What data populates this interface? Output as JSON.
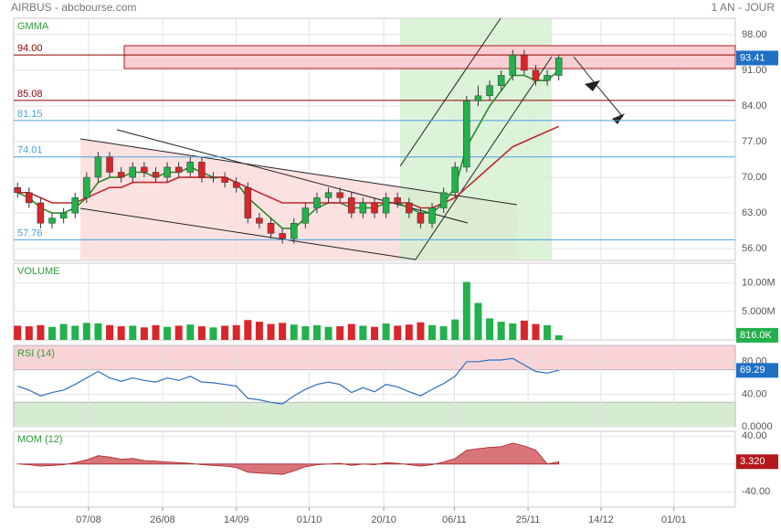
{
  "header": {
    "title": "AIRBUS - abcbourse.com",
    "period": "1 AN - JOUR"
  },
  "xaxis": {
    "x": [
      1,
      4,
      7,
      10,
      13,
      16,
      19,
      22,
      25,
      28,
      31,
      34,
      37,
      40,
      43,
      46,
      49,
      52,
      55,
      58,
      61,
      64,
      67,
      70,
      73,
      76,
      79,
      82,
      85,
      88,
      91,
      94,
      97,
      100,
      103,
      106,
      109,
      112,
      115,
      118,
      121,
      124,
      127,
      130,
      133,
      136,
      139,
      142
    ],
    "xlim": [
      0,
      188
    ],
    "xticks": [
      {
        "value": 19.5,
        "label": "07/08"
      },
      {
        "value": 38.8,
        "label": "26/08"
      },
      {
        "value": 58,
        "label": "14/09"
      },
      {
        "value": 77,
        "label": "01/10"
      },
      {
        "value": 96.4,
        "label": "20/10"
      },
      {
        "value": 114.8,
        "label": "06/11"
      },
      {
        "value": 134,
        "label": "25/11"
      },
      {
        "value": 153,
        "label": "14/12"
      },
      {
        "value": 172,
        "label": "01/01"
      }
    ]
  },
  "chart_data": [
    {
      "type": "candlestick",
      "title": "GMMA",
      "up_color": "#22b14c",
      "down_color": "#d9262b",
      "open": [
        68,
        67,
        65,
        61,
        62,
        63,
        66,
        70,
        74,
        71,
        70,
        72,
        71,
        70,
        72,
        71,
        73,
        70,
        70,
        69,
        68,
        62,
        61,
        59,
        58,
        61,
        64,
        66,
        67,
        66,
        63,
        65,
        63,
        66,
        65,
        63,
        61,
        64,
        67,
        72,
        85,
        86,
        88,
        90,
        94,
        91,
        89,
        90
      ],
      "high": [
        69,
        68,
        66,
        63,
        64,
        67,
        71,
        75,
        75,
        72,
        73,
        73,
        72,
        73,
        73,
        74,
        74,
        71,
        71,
        70,
        69,
        63,
        62,
        60,
        62,
        65,
        67,
        68,
        68,
        67,
        66,
        66,
        67,
        67,
        66,
        64,
        65,
        68,
        73,
        86,
        88,
        89,
        91,
        95,
        95,
        92,
        91,
        94
      ],
      "low": [
        66,
        64,
        60,
        60,
        61,
        62,
        65,
        69,
        70,
        69,
        69,
        70,
        69,
        69,
        70,
        70,
        69,
        69,
        68,
        67,
        61,
        60,
        58,
        57,
        57,
        60,
        63,
        65,
        65,
        62,
        62,
        62,
        62,
        64,
        62,
        60,
        60,
        63,
        66,
        71,
        84,
        85,
        87,
        89,
        90,
        88,
        88,
        89
      ],
      "close": [
        67,
        65,
        61,
        62,
        63,
        66,
        70,
        74,
        71,
        70,
        72,
        71,
        70,
        72,
        71,
        73,
        70,
        70,
        69,
        68,
        62,
        61,
        59,
        58,
        61,
        64,
        66,
        67,
        66,
        63,
        65,
        63,
        66,
        65,
        63,
        61,
        64,
        67,
        72,
        85,
        86,
        88,
        90,
        94,
        91,
        89,
        90,
        93.41
      ],
      "last_label": "93.41",
      "last_color": "#1f6fc5",
      "overlays": [
        {
          "color": "#2a8a2a",
          "values": [
            67,
            66,
            64,
            63,
            63,
            64,
            66,
            69,
            70,
            70,
            71,
            71,
            70,
            71,
            71,
            72,
            71,
            70,
            70,
            69,
            66,
            64,
            62,
            60,
            60,
            62,
            64,
            65,
            65,
            64,
            64,
            64,
            65,
            65,
            64,
            63,
            63,
            65,
            68,
            76,
            80,
            84,
            87,
            90,
            90,
            89,
            89,
            91
          ]
        },
        {
          "color": "#c0282d",
          "values": [
            67,
            67,
            66,
            65,
            65,
            65,
            66,
            67,
            68,
            68,
            69,
            69,
            69,
            69,
            70,
            70,
            70,
            70,
            70,
            69,
            68,
            67,
            66,
            65,
            65,
            65,
            65,
            65,
            65,
            65,
            65,
            65,
            65,
            65,
            65,
            64,
            64,
            65,
            66,
            68,
            70,
            72,
            74,
            76,
            77,
            78,
            79,
            80
          ]
        }
      ],
      "levels": [
        {
          "value": 94,
          "label": "94.00",
          "color": "#8b0000"
        },
        {
          "value": 85.08,
          "label": "85.08",
          "color": "#8b0000"
        },
        {
          "value": 81.15,
          "label": "81.15",
          "color": "#4aa3df"
        },
        {
          "value": 74.01,
          "label": "74.01",
          "color": "#4aa3df"
        },
        {
          "value": 57.76,
          "label": "57.76",
          "color": "#4aa3df"
        }
      ],
      "ylim": [
        53.7,
        101.2
      ],
      "yticks": [
        {
          "value": 98,
          "label": "98.00"
        },
        {
          "value": 91,
          "label": "91.00"
        },
        {
          "value": 84,
          "label": "84.00"
        },
        {
          "value": 77,
          "label": "77.00"
        },
        {
          "value": 70,
          "label": "70.00"
        },
        {
          "value": 63,
          "label": "63.00"
        },
        {
          "value": 56,
          "label": "56.00"
        }
      ]
    },
    {
      "type": "bar",
      "title": "VOLUME",
      "values": [
        2500000,
        2400000,
        2600000,
        2300000,
        2800000,
        2500000,
        3000000,
        2900000,
        2600000,
        2400000,
        2500000,
        2200000,
        2600000,
        2300000,
        2500000,
        2700000,
        2400000,
        2200000,
        2500000,
        2600000,
        3500000,
        3200000,
        2800000,
        3000000,
        2700000,
        2400000,
        2600000,
        2300000,
        2400000,
        2800000,
        2500000,
        2300000,
        2900000,
        2500000,
        2700000,
        3100000,
        2600000,
        2400000,
        3600000,
        10200000,
        6500000,
        3800000,
        3200000,
        2900000,
        3400000,
        2800000,
        2600000,
        816000
      ],
      "last_label": "816.0K",
      "last_color": "#22b14c",
      "ylim": [
        0,
        13500000
      ],
      "yticks": [
        {
          "value": 5000000,
          "label": "5.000M"
        },
        {
          "value": 10000000,
          "label": "10.00M"
        }
      ]
    },
    {
      "type": "line",
      "title": "RSI (14)",
      "color": "#2c6fbd",
      "values": [
        50,
        45,
        38,
        42,
        45,
        52,
        60,
        68,
        60,
        56,
        60,
        57,
        55,
        60,
        57,
        62,
        55,
        54,
        52,
        50,
        35,
        33,
        30,
        28,
        38,
        46,
        52,
        55,
        52,
        42,
        48,
        43,
        52,
        49,
        43,
        38,
        46,
        53,
        62,
        80,
        80,
        82,
        82,
        84,
        76,
        68,
        66,
        69.29
      ],
      "last_label": "69.29",
      "last_color": "#1f6fc5",
      "zones": [
        {
          "range": [
            70,
            100
          ],
          "color": "#f9d3d6"
        },
        {
          "range": [
            0,
            30
          ],
          "color": "#d6ecd2"
        }
      ],
      "ylim": [
        0,
        100
      ],
      "yticks": [
        {
          "value": 0,
          "label": "0.0000"
        },
        {
          "value": 40,
          "label": "40.00"
        },
        {
          "value": 80,
          "label": "80.00"
        }
      ]
    },
    {
      "type": "area",
      "title": "MOM (12)",
      "color": "#d9747a",
      "values": [
        0,
        -1,
        -3,
        -2,
        -1,
        2,
        6,
        12,
        10,
        7,
        8,
        5,
        4,
        3,
        2,
        1,
        -1,
        -2,
        -3,
        -5,
        -12,
        -13,
        -14,
        -15,
        -10,
        -4,
        -1,
        0,
        1,
        -2,
        0,
        -1,
        2,
        1,
        -1,
        -3,
        -1,
        3,
        8,
        20,
        22,
        24,
        25,
        30,
        26,
        20,
        0,
        3.32
      ],
      "last_label": "3.320",
      "last_color": "#b3171c",
      "ylim": [
        -62,
        47
      ],
      "yticks": [
        {
          "value": 40,
          "label": "40.00"
        },
        {
          "value": 0,
          "label": "0.000"
        },
        {
          "value": -40,
          "label": "-40.00"
        }
      ]
    }
  ]
}
